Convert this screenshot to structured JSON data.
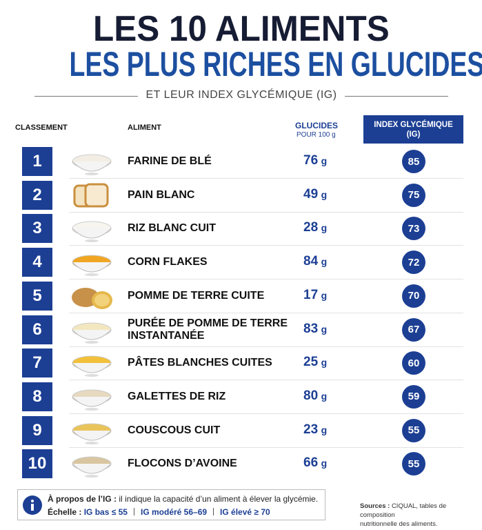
{
  "header": {
    "title_line1": "LES 10 ALIMENTS",
    "title_line2": "LES PLUS RICHES EN GLUCIDES",
    "subtitle": "ET LEUR INDEX GLYCÉMIQUE (IG)"
  },
  "table": {
    "columns": {
      "rank": "CLASSEMENT",
      "food": "ALIMENT",
      "carbs": "GLUCIDES",
      "carbs_note": "POUR 100 g",
      "ig": "INDEX GLYCÉMIQUE",
      "ig_note": "(IG)"
    },
    "unit": "g",
    "rows": [
      {
        "rank": 1,
        "food": "FARINE DE BLÉ",
        "carbs": 76,
        "ig": 85
      },
      {
        "rank": 2,
        "food": "PAIN BLANC",
        "carbs": 49,
        "ig": 75
      },
      {
        "rank": 3,
        "food": "RIZ BLANC CUIT",
        "carbs": 28,
        "ig": 73
      },
      {
        "rank": 4,
        "food": "CORN FLAKES",
        "carbs": 84,
        "ig": 72
      },
      {
        "rank": 5,
        "food": "POMME DE TERRE CUITE",
        "carbs": 17,
        "ig": 70
      },
      {
        "rank": 6,
        "food": "PURÉE DE POMME DE TERRE INSTANTANÉE",
        "carbs": 83,
        "ig": 67
      },
      {
        "rank": 7,
        "food": "PÂTES BLANCHES CUITES",
        "carbs": 25,
        "ig": 60
      },
      {
        "rank": 8,
        "food": "GALETTES DE RIZ",
        "carbs": 80,
        "ig": 59
      },
      {
        "rank": 9,
        "food": "COUSCOUS CUIT",
        "carbs": 23,
        "ig": 55
      },
      {
        "rank": 10,
        "food": "FLOCONS D’AVOINE",
        "carbs": 66,
        "ig": 55
      }
    ]
  },
  "footer": {
    "about_label": "À propos de l’IG :",
    "about_text": "il indique la capacité d’un aliment à élever la glycémie.",
    "scale_label": "Échelle :",
    "scale": [
      "IG bas ≤ 55",
      "IG modéré 56–69",
      "IG élevé ≥ 70"
    ],
    "sources_label": "Sources :",
    "sources_lines": [
      "CIQUAL, tables de composition",
      "nutritionnelle des aliments."
    ]
  }
}
